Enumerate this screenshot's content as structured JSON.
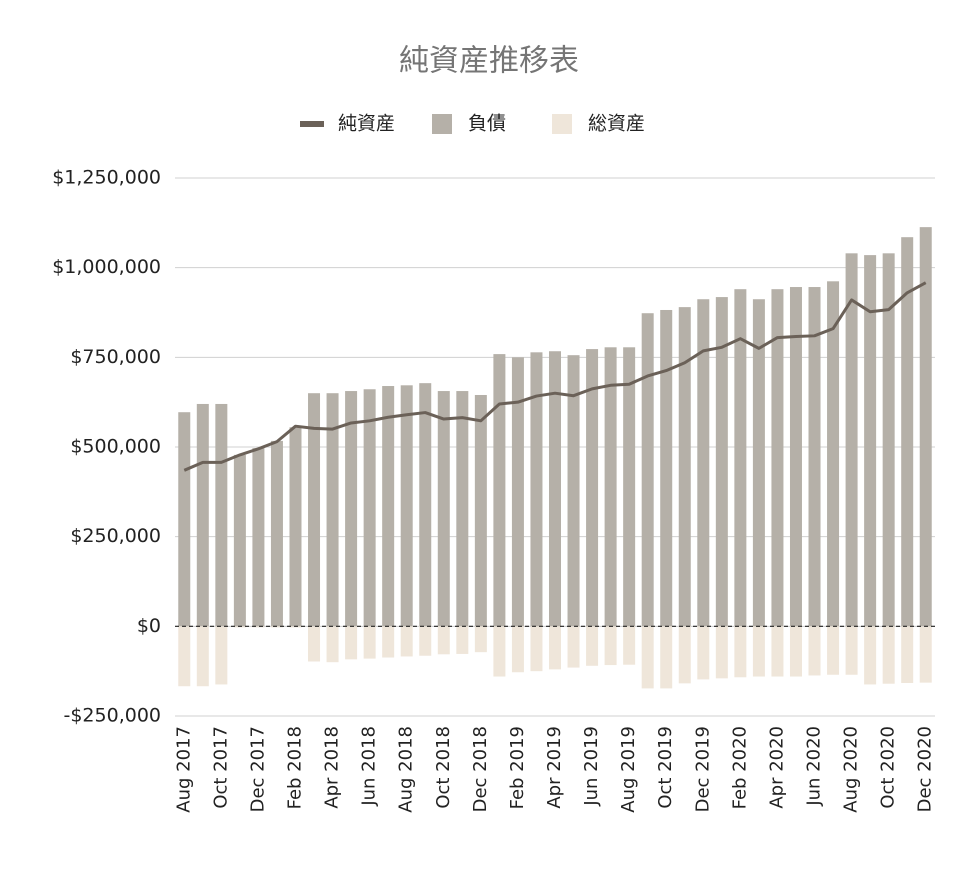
{
  "chart_data": {
    "type": "bar-line",
    "title": "純資産推移表",
    "categories": [
      "Aug 2017",
      null,
      "Oct 2017",
      null,
      "Dec 2017",
      null,
      "Feb 2018",
      null,
      "Apr 2018",
      null,
      "Jun 2018",
      null,
      "Aug 2018",
      null,
      "Oct 2018",
      null,
      "Dec 2018",
      null,
      "Feb 2019",
      null,
      "Apr 2019",
      null,
      "Jun 2019",
      null,
      "Aug 2019",
      null,
      "Oct 2019",
      null,
      "Dec 2019",
      null,
      "Feb 2020",
      null,
      "Apr 2020",
      null,
      "Jun 2020",
      null,
      "Aug 2020",
      null,
      "Oct 2020",
      null,
      "Dec 2020"
    ],
    "series": [
      {
        "name": "純資産",
        "kind": "line",
        "color": "#6b6158",
        "values": [
          435000,
          457000,
          457000,
          478000,
          495000,
          515000,
          558000,
          552000,
          550000,
          567000,
          573000,
          583000,
          590000,
          596000,
          578000,
          582000,
          573000,
          620000,
          625000,
          642000,
          650000,
          643000,
          662000,
          672000,
          675000,
          698000,
          713000,
          735000,
          768000,
          778000,
          802000,
          775000,
          805000,
          808000,
          810000,
          830000,
          910000,
          877000,
          883000,
          930000,
          958000
        ]
      },
      {
        "name": "負債",
        "kind": "bar",
        "color": "#b5b0a8",
        "values": [
          597000,
          620000,
          620000,
          478000,
          497000,
          517000,
          555000,
          650000,
          650000,
          656000,
          661000,
          670000,
          672000,
          678000,
          656000,
          656000,
          645000,
          759000,
          750000,
          764000,
          767000,
          756000,
          773000,
          778000,
          778000,
          873000,
          882000,
          890000,
          912000,
          918000,
          940000,
          912000,
          940000,
          946000,
          946000,
          962000,
          1040000,
          1035000,
          1040000,
          1085000,
          1113000
        ]
      },
      {
        "name": "総資産",
        "kind": "bar",
        "color": "#efe6da",
        "values": [
          -167000,
          -167000,
          -162000,
          -3000,
          -3000,
          -3000,
          -3000,
          -98000,
          -100000,
          -92000,
          -90000,
          -87000,
          -84000,
          -82000,
          -78000,
          -77000,
          -72000,
          -140000,
          -128000,
          -125000,
          -120000,
          -115000,
          -110000,
          -108000,
          -107000,
          -173000,
          -173000,
          -159000,
          -148000,
          -145000,
          -142000,
          -140000,
          -140000,
          -140000,
          -137000,
          -135000,
          -135000,
          -162000,
          -160000,
          -158000,
          -157000
        ]
      }
    ],
    "ylim": [
      -250000,
      1250000
    ],
    "yticks": [
      {
        "value": -250000,
        "label": "-$250,000"
      },
      {
        "value": 0,
        "label": "$0"
      },
      {
        "value": 250000,
        "label": "$250,000"
      },
      {
        "value": 500000,
        "label": "$500,000"
      },
      {
        "value": 750000,
        "label": "$750,000"
      },
      {
        "value": 1000000,
        "label": "$1,000,000"
      },
      {
        "value": 1250000,
        "label": "$1,250,000"
      }
    ],
    "grid": true,
    "legend": "top"
  }
}
